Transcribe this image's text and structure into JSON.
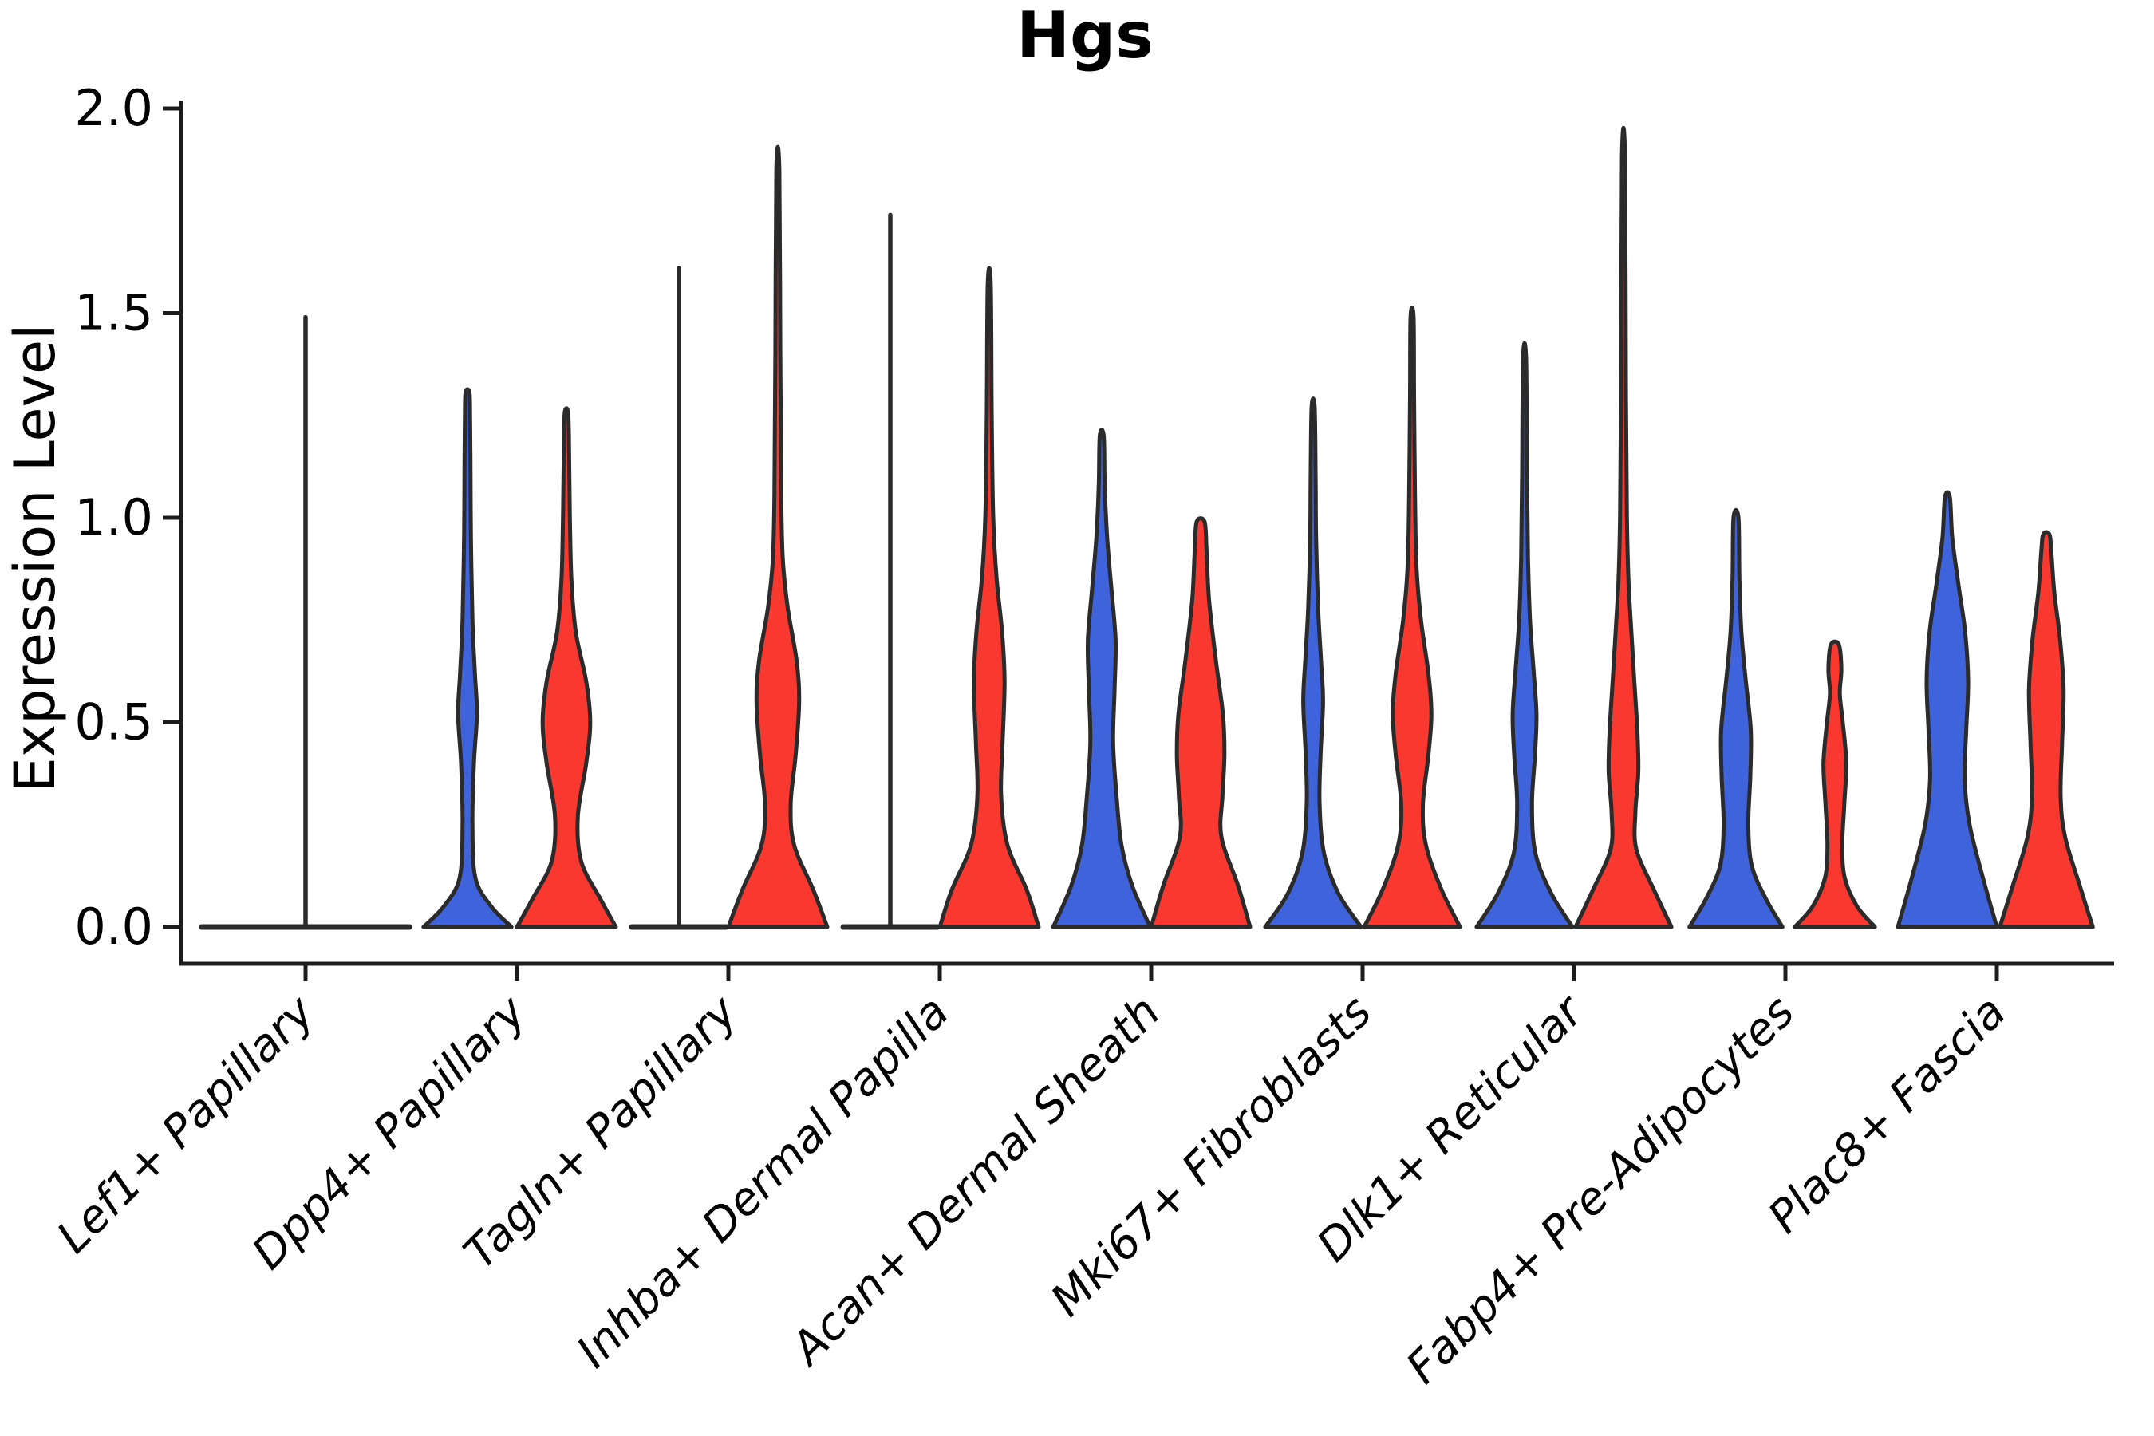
{
  "chart_data": {
    "type": "violin",
    "title": "Hgs",
    "ylabel": "Expression Level",
    "xlabel": "",
    "ylim": [
      0.0,
      2.0
    ],
    "grid": false,
    "legend": "none",
    "yticks": [
      {
        "value": 2.0,
        "label": "2.0"
      },
      {
        "value": 1.5,
        "label": "1.5"
      },
      {
        "value": 1.0,
        "label": "1.0"
      },
      {
        "value": 0.5,
        "label": "0.5"
      },
      {
        "value": 0.0,
        "label": "0.0"
      }
    ],
    "palette": {
      "blue": "#3E63DB",
      "red": "#F93830",
      "outline": "#2b2b2b",
      "axis": "#1c1c1c"
    },
    "categories": [
      {
        "label": "Lef1+ Papillary",
        "violins": [
          {
            "series": "single",
            "color": "outline",
            "shape": "flat_spike",
            "max": 1.49,
            "flat_halfwidth_rel": 2.1
          }
        ]
      },
      {
        "label": "Dpp4+ Papillary",
        "violins": [
          {
            "series": "blue",
            "color": "blue",
            "shape": "violin",
            "max": 1.31,
            "profile": [
              [
                0,
                0.89
              ],
              [
                0.05,
                0.48
              ],
              [
                0.12,
                0.16
              ],
              [
                0.25,
                0.1
              ],
              [
                0.4,
                0.13
              ],
              [
                0.52,
                0.19
              ],
              [
                0.62,
                0.15
              ],
              [
                0.75,
                0.1
              ],
              [
                0.95,
                0.07
              ],
              [
                1.15,
                0.06
              ],
              [
                1.28,
                0.05
              ],
              [
                1.31,
                0.03
              ]
            ]
          },
          {
            "series": "red",
            "color": "red",
            "shape": "violin",
            "max": 1.26,
            "profile": [
              [
                0,
                1.0
              ],
              [
                0.07,
                0.68
              ],
              [
                0.16,
                0.3
              ],
              [
                0.27,
                0.23
              ],
              [
                0.4,
                0.4
              ],
              [
                0.5,
                0.48
              ],
              [
                0.6,
                0.4
              ],
              [
                0.72,
                0.19
              ],
              [
                0.85,
                0.1
              ],
              [
                1.0,
                0.07
              ],
              [
                1.2,
                0.05
              ],
              [
                1.26,
                0.03
              ]
            ]
          }
        ]
      },
      {
        "label": "Tagln+ Papillary",
        "violins": [
          {
            "series": "blue",
            "color": "outline",
            "shape": "flat_spike",
            "max": 1.61,
            "flat_halfwidth_rel": 0.95
          },
          {
            "series": "red",
            "color": "red",
            "shape": "violin",
            "max": 1.85,
            "profile": [
              [
                0,
                1.0
              ],
              [
                0.09,
                0.72
              ],
              [
                0.2,
                0.33
              ],
              [
                0.3,
                0.26
              ],
              [
                0.42,
                0.36
              ],
              [
                0.55,
                0.43
              ],
              [
                0.65,
                0.38
              ],
              [
                0.78,
                0.2
              ],
              [
                0.9,
                0.1
              ],
              [
                1.05,
                0.07
              ],
              [
                1.4,
                0.05
              ],
              [
                1.85,
                0.03
              ]
            ]
          }
        ]
      },
      {
        "label": "Inhba+ Dermal Papilla",
        "violins": [
          {
            "series": "blue",
            "color": "outline",
            "shape": "flat_spike",
            "max": 1.74,
            "flat_halfwidth_rel": 0.95
          },
          {
            "series": "red",
            "color": "red",
            "shape": "violin",
            "max": 1.57,
            "profile": [
              [
                0,
                1.0
              ],
              [
                0.09,
                0.76
              ],
              [
                0.2,
                0.37
              ],
              [
                0.32,
                0.24
              ],
              [
                0.45,
                0.27
              ],
              [
                0.6,
                0.31
              ],
              [
                0.72,
                0.26
              ],
              [
                0.85,
                0.15
              ],
              [
                1.0,
                0.08
              ],
              [
                1.25,
                0.05
              ],
              [
                1.57,
                0.03
              ]
            ]
          }
        ]
      },
      {
        "label": "Acan+ Dermal Sheath",
        "violins": [
          {
            "series": "blue",
            "color": "blue",
            "shape": "violin",
            "max": 1.2,
            "profile": [
              [
                0,
                0.98
              ],
              [
                0.1,
                0.62
              ],
              [
                0.2,
                0.4
              ],
              [
                0.32,
                0.3
              ],
              [
                0.45,
                0.23
              ],
              [
                0.58,
                0.26
              ],
              [
                0.7,
                0.28
              ],
              [
                0.82,
                0.2
              ],
              [
                0.95,
                0.11
              ],
              [
                1.08,
                0.06
              ],
              [
                1.2,
                0.04
              ]
            ]
          },
          {
            "series": "red",
            "color": "red",
            "shape": "violin",
            "max": 0.99,
            "profile": [
              [
                0,
                1.0
              ],
              [
                0.1,
                0.76
              ],
              [
                0.22,
                0.42
              ],
              [
                0.32,
                0.44
              ],
              [
                0.42,
                0.48
              ],
              [
                0.52,
                0.45
              ],
              [
                0.65,
                0.31
              ],
              [
                0.8,
                0.17
              ],
              [
                0.92,
                0.12
              ],
              [
                0.99,
                0.08
              ]
            ]
          }
        ]
      },
      {
        "label": "Mki67+ Fibroblasts",
        "violins": [
          {
            "series": "blue",
            "color": "blue",
            "shape": "violin",
            "max": 1.27,
            "profile": [
              [
                0,
                0.97
              ],
              [
                0.08,
                0.52
              ],
              [
                0.18,
                0.22
              ],
              [
                0.3,
                0.13
              ],
              [
                0.42,
                0.15
              ],
              [
                0.55,
                0.2
              ],
              [
                0.65,
                0.16
              ],
              [
                0.78,
                0.1
              ],
              [
                0.95,
                0.06
              ],
              [
                1.1,
                0.05
              ],
              [
                1.27,
                0.03
              ]
            ]
          },
          {
            "series": "red",
            "color": "red",
            "shape": "violin",
            "max": 1.49,
            "profile": [
              [
                0,
                0.97
              ],
              [
                0.09,
                0.6
              ],
              [
                0.2,
                0.28
              ],
              [
                0.3,
                0.22
              ],
              [
                0.42,
                0.33
              ],
              [
                0.52,
                0.39
              ],
              [
                0.62,
                0.33
              ],
              [
                0.75,
                0.18
              ],
              [
                0.88,
                0.09
              ],
              [
                1.05,
                0.06
              ],
              [
                1.3,
                0.04
              ],
              [
                1.49,
                0.03
              ]
            ]
          }
        ]
      },
      {
        "label": "Dlk1+ Reticular",
        "violins": [
          {
            "series": "blue",
            "color": "blue",
            "shape": "violin",
            "max": 1.39,
            "profile": [
              [
                0,
                0.97
              ],
              [
                0.08,
                0.55
              ],
              [
                0.18,
                0.22
              ],
              [
                0.3,
                0.15
              ],
              [
                0.42,
                0.21
              ],
              [
                0.52,
                0.24
              ],
              [
                0.63,
                0.18
              ],
              [
                0.75,
                0.11
              ],
              [
                0.9,
                0.07
              ],
              [
                1.1,
                0.05
              ],
              [
                1.39,
                0.03
              ]
            ]
          },
          {
            "series": "red",
            "color": "red",
            "shape": "violin",
            "max": 1.88,
            "profile": [
              [
                0,
                0.97
              ],
              [
                0.09,
                0.62
              ],
              [
                0.19,
                0.26
              ],
              [
                0.28,
                0.24
              ],
              [
                0.38,
                0.3
              ],
              [
                0.48,
                0.28
              ],
              [
                0.6,
                0.22
              ],
              [
                0.72,
                0.16
              ],
              [
                0.85,
                0.1
              ],
              [
                1.0,
                0.07
              ],
              [
                1.3,
                0.05
              ],
              [
                1.88,
                0.03
              ]
            ]
          }
        ]
      },
      {
        "label": "Fabp4+ Pre-Adipocytes",
        "violins": [
          {
            "series": "blue",
            "color": "blue",
            "shape": "violin",
            "max": 1.0,
            "profile": [
              [
                0,
                0.94
              ],
              [
                0.07,
                0.6
              ],
              [
                0.15,
                0.32
              ],
              [
                0.25,
                0.25
              ],
              [
                0.37,
                0.29
              ],
              [
                0.48,
                0.3
              ],
              [
                0.6,
                0.2
              ],
              [
                0.72,
                0.11
              ],
              [
                0.85,
                0.07
              ],
              [
                1.0,
                0.05
              ]
            ]
          },
          {
            "series": "red",
            "color": "red",
            "shape": "violin",
            "max": 0.69,
            "profile": [
              [
                0,
                0.81
              ],
              [
                0.05,
                0.45
              ],
              [
                0.12,
                0.2
              ],
              [
                0.2,
                0.15
              ],
              [
                0.3,
                0.19
              ],
              [
                0.4,
                0.23
              ],
              [
                0.5,
                0.16
              ],
              [
                0.57,
                0.1
              ],
              [
                0.63,
                0.13
              ],
              [
                0.69,
                0.08
              ]
            ]
          }
        ]
      },
      {
        "label": "Plac8+ Fascia",
        "violins": [
          {
            "series": "blue",
            "color": "blue",
            "shape": "violin",
            "max": 1.05,
            "profile": [
              [
                0,
                1.0
              ],
              [
                0.12,
                0.72
              ],
              [
                0.25,
                0.45
              ],
              [
                0.36,
                0.35
              ],
              [
                0.48,
                0.38
              ],
              [
                0.6,
                0.42
              ],
              [
                0.72,
                0.36
              ],
              [
                0.84,
                0.22
              ],
              [
                0.95,
                0.1
              ],
              [
                1.05,
                0.05
              ]
            ]
          },
          {
            "series": "red",
            "color": "red",
            "shape": "violin",
            "max": 0.96,
            "profile": [
              [
                0,
                0.94
              ],
              [
                0.1,
                0.68
              ],
              [
                0.22,
                0.38
              ],
              [
                0.32,
                0.29
              ],
              [
                0.45,
                0.32
              ],
              [
                0.58,
                0.35
              ],
              [
                0.7,
                0.28
              ],
              [
                0.82,
                0.16
              ],
              [
                0.92,
                0.1
              ],
              [
                0.96,
                0.06
              ]
            ]
          }
        ]
      }
    ]
  }
}
